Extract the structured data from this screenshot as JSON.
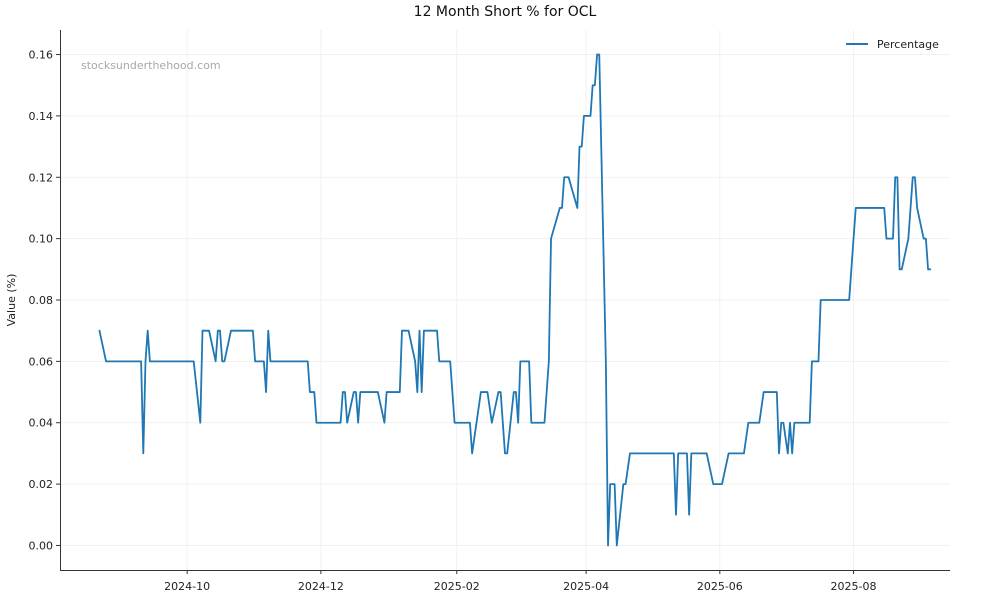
{
  "chart_data": {
    "type": "line",
    "title": "12 Month Short % for OCL",
    "xlabel": "",
    "ylabel": "Value (%)",
    "watermark": "stocksunderthehood.com",
    "x_range": [
      "2024-08-04",
      "2025-09-14"
    ],
    "ylim": [
      -0.008,
      0.168
    ],
    "y_ticks": [
      0.0,
      0.02,
      0.04,
      0.06,
      0.08,
      0.1,
      0.12,
      0.14,
      0.16
    ],
    "y_tick_labels": [
      "0.00",
      "0.02",
      "0.04",
      "0.06",
      "0.08",
      "0.10",
      "0.12",
      "0.14",
      "0.16"
    ],
    "x_ticks": [
      "2024-10-01",
      "2024-12-01",
      "2025-02-01",
      "2025-04-01",
      "2025-06-01",
      "2025-08-01"
    ],
    "x_tick_labels": [
      "2024-10",
      "2024-12",
      "2025-02",
      "2025-04",
      "2025-06",
      "2025-08"
    ],
    "grid": true,
    "legend_position": "top-right",
    "series": [
      {
        "name": "Percentage",
        "color": "#1f77b4",
        "points": [
          [
            "2024-08-22",
            0.07
          ],
          [
            "2024-08-25",
            0.06
          ],
          [
            "2024-09-10",
            0.06
          ],
          [
            "2024-09-11",
            0.03
          ],
          [
            "2024-09-12",
            0.06
          ],
          [
            "2024-09-13",
            0.07
          ],
          [
            "2024-09-14",
            0.06
          ],
          [
            "2024-10-04",
            0.06
          ],
          [
            "2024-10-07",
            0.04
          ],
          [
            "2024-10-08",
            0.07
          ],
          [
            "2024-10-11",
            0.07
          ],
          [
            "2024-10-14",
            0.06
          ],
          [
            "2024-10-15",
            0.07
          ],
          [
            "2024-10-16",
            0.07
          ],
          [
            "2024-10-17",
            0.06
          ],
          [
            "2024-10-18",
            0.06
          ],
          [
            "2024-10-21",
            0.07
          ],
          [
            "2024-10-31",
            0.07
          ],
          [
            "2024-11-01",
            0.06
          ],
          [
            "2024-11-05",
            0.06
          ],
          [
            "2024-11-06",
            0.05
          ],
          [
            "2024-11-07",
            0.07
          ],
          [
            "2024-11-08",
            0.06
          ],
          [
            "2024-11-25",
            0.06
          ],
          [
            "2024-11-26",
            0.05
          ],
          [
            "2024-11-28",
            0.05
          ],
          [
            "2024-11-29",
            0.04
          ],
          [
            "2024-12-10",
            0.04
          ],
          [
            "2024-12-11",
            0.05
          ],
          [
            "2024-12-12",
            0.05
          ],
          [
            "2024-12-13",
            0.04
          ],
          [
            "2024-12-16",
            0.05
          ],
          [
            "2024-12-17",
            0.05
          ],
          [
            "2024-12-18",
            0.04
          ],
          [
            "2024-12-19",
            0.05
          ],
          [
            "2024-12-27",
            0.05
          ],
          [
            "2024-12-30",
            0.04
          ],
          [
            "2024-12-31",
            0.05
          ],
          [
            "2025-01-06",
            0.05
          ],
          [
            "2025-01-07",
            0.07
          ],
          [
            "2025-01-10",
            0.07
          ],
          [
            "2025-01-13",
            0.06
          ],
          [
            "2025-01-14",
            0.05
          ],
          [
            "2025-01-15",
            0.07
          ],
          [
            "2025-01-16",
            0.05
          ],
          [
            "2025-01-17",
            0.07
          ],
          [
            "2025-01-23",
            0.07
          ],
          [
            "2025-01-24",
            0.06
          ],
          [
            "2025-01-29",
            0.06
          ],
          [
            "2025-01-31",
            0.04
          ],
          [
            "2025-02-07",
            0.04
          ],
          [
            "2025-02-08",
            0.03
          ],
          [
            "2025-02-10",
            0.04
          ],
          [
            "2025-02-12",
            0.05
          ],
          [
            "2025-02-15",
            0.05
          ],
          [
            "2025-02-17",
            0.04
          ],
          [
            "2025-02-20",
            0.05
          ],
          [
            "2025-02-21",
            0.05
          ],
          [
            "2025-02-23",
            0.03
          ],
          [
            "2025-02-24",
            0.03
          ],
          [
            "2025-02-27",
            0.05
          ],
          [
            "2025-02-28",
            0.05
          ],
          [
            "2025-03-01",
            0.04
          ],
          [
            "2025-03-02",
            0.06
          ],
          [
            "2025-03-06",
            0.06
          ],
          [
            "2025-03-07",
            0.04
          ],
          [
            "2025-03-13",
            0.04
          ],
          [
            "2025-03-15",
            0.06
          ],
          [
            "2025-03-16",
            0.1
          ],
          [
            "2025-03-20",
            0.11
          ],
          [
            "2025-03-21",
            0.11
          ],
          [
            "2025-03-22",
            0.12
          ],
          [
            "2025-03-24",
            0.12
          ],
          [
            "2025-03-28",
            0.11
          ],
          [
            "2025-03-29",
            0.13
          ],
          [
            "2025-03-30",
            0.13
          ],
          [
            "2025-03-31",
            0.14
          ],
          [
            "2025-04-03",
            0.14
          ],
          [
            "2025-04-04",
            0.15
          ],
          [
            "2025-04-05",
            0.15
          ],
          [
            "2025-04-06",
            0.16
          ],
          [
            "2025-04-07",
            0.16
          ],
          [
            "2025-04-10",
            0.06
          ],
          [
            "2025-04-11",
            0.0
          ],
          [
            "2025-04-12",
            0.02
          ],
          [
            "2025-04-14",
            0.02
          ],
          [
            "2025-04-15",
            0.0
          ],
          [
            "2025-04-18",
            0.02
          ],
          [
            "2025-04-19",
            0.02
          ],
          [
            "2025-04-21",
            0.03
          ],
          [
            "2025-05-11",
            0.03
          ],
          [
            "2025-05-12",
            0.01
          ],
          [
            "2025-05-13",
            0.03
          ],
          [
            "2025-05-17",
            0.03
          ],
          [
            "2025-05-18",
            0.01
          ],
          [
            "2025-05-19",
            0.03
          ],
          [
            "2025-05-26",
            0.03
          ],
          [
            "2025-05-29",
            0.02
          ],
          [
            "2025-06-02",
            0.02
          ],
          [
            "2025-06-05",
            0.03
          ],
          [
            "2025-06-12",
            0.03
          ],
          [
            "2025-06-14",
            0.04
          ],
          [
            "2025-06-19",
            0.04
          ],
          [
            "2025-06-21",
            0.05
          ],
          [
            "2025-06-27",
            0.05
          ],
          [
            "2025-06-28",
            0.03
          ],
          [
            "2025-06-29",
            0.04
          ],
          [
            "2025-06-30",
            0.04
          ],
          [
            "2025-07-02",
            0.03
          ],
          [
            "2025-07-03",
            0.04
          ],
          [
            "2025-07-04",
            0.03
          ],
          [
            "2025-07-05",
            0.04
          ],
          [
            "2025-07-12",
            0.04
          ],
          [
            "2025-07-13",
            0.06
          ],
          [
            "2025-07-16",
            0.06
          ],
          [
            "2025-07-17",
            0.08
          ],
          [
            "2025-07-30",
            0.08
          ],
          [
            "2025-08-01",
            0.1
          ],
          [
            "2025-08-02",
            0.11
          ],
          [
            "2025-08-15",
            0.11
          ],
          [
            "2025-08-16",
            0.1
          ],
          [
            "2025-08-19",
            0.1
          ],
          [
            "2025-08-20",
            0.12
          ],
          [
            "2025-08-21",
            0.12
          ],
          [
            "2025-08-22",
            0.09
          ],
          [
            "2025-08-23",
            0.09
          ],
          [
            "2025-08-26",
            0.1
          ],
          [
            "2025-08-28",
            0.12
          ],
          [
            "2025-08-29",
            0.12
          ],
          [
            "2025-08-30",
            0.11
          ],
          [
            "2025-09-02",
            0.1
          ],
          [
            "2025-09-03",
            0.1
          ],
          [
            "2025-09-04",
            0.09
          ],
          [
            "2025-09-05",
            0.09
          ]
        ]
      }
    ]
  }
}
